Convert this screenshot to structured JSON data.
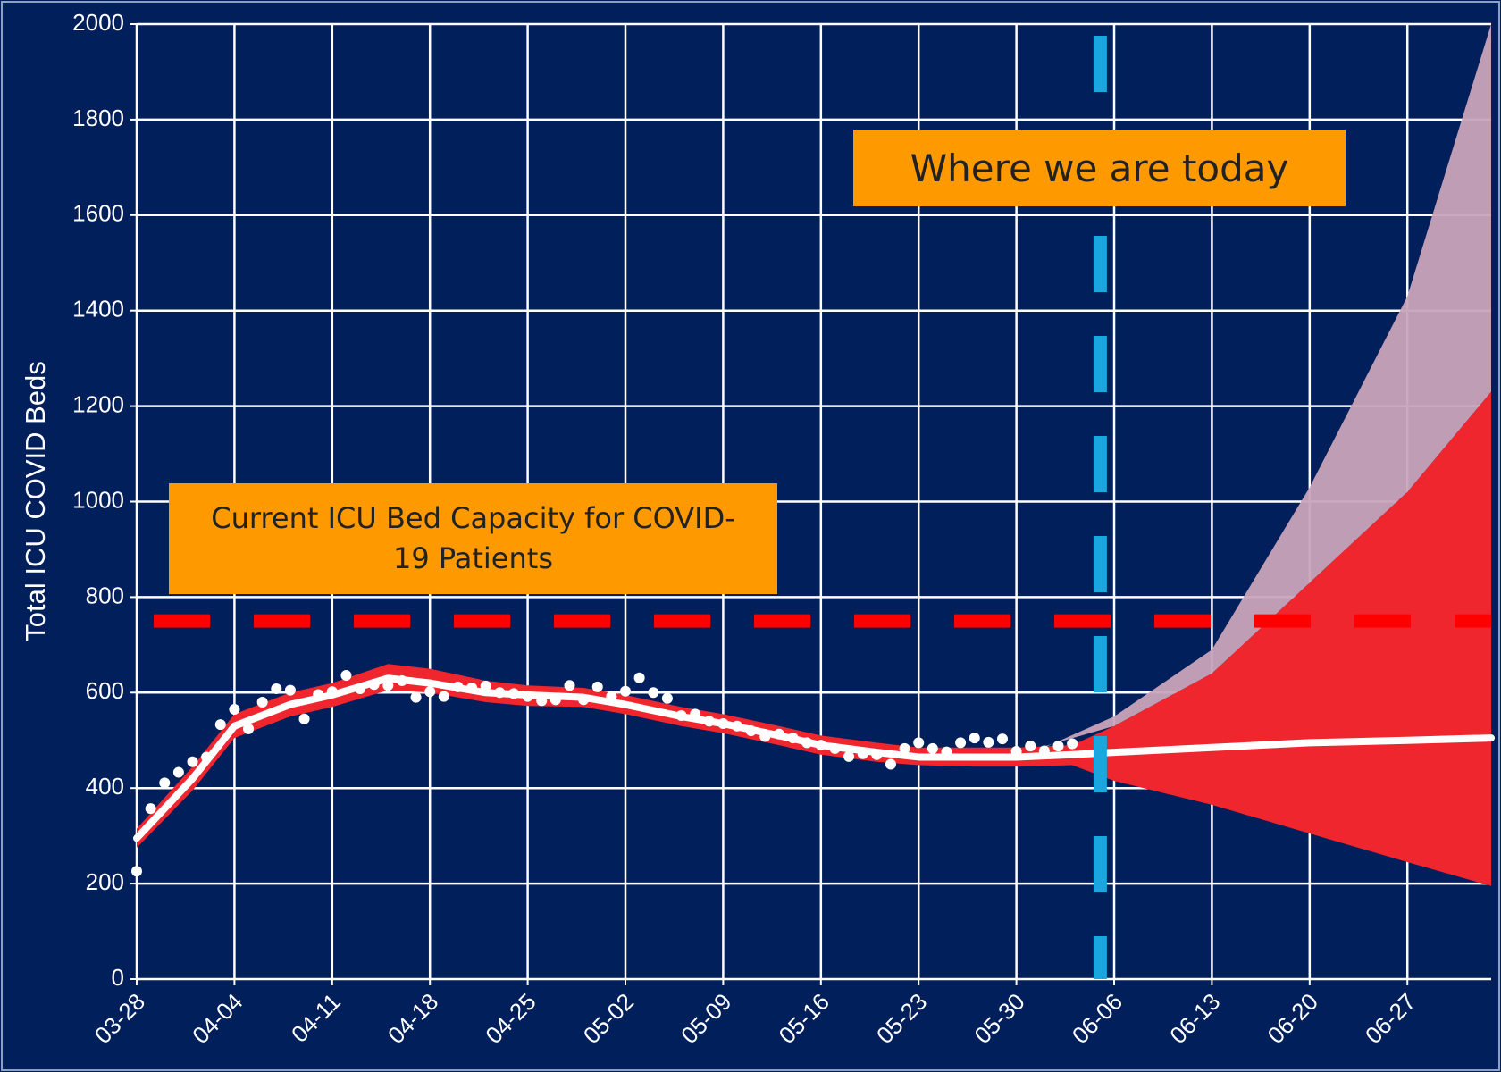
{
  "chart_data": {
    "type": "scatter",
    "ylabel": "Total ICU COVID Beds",
    "ylim": [
      0,
      2000
    ],
    "yticks": [
      0,
      200,
      400,
      600,
      800,
      1000,
      1200,
      1400,
      1600,
      1800,
      2000
    ],
    "xlim": [
      "03-28",
      "07-03"
    ],
    "xticks": [
      "03-28",
      "04-04",
      "04-11",
      "04-18",
      "04-25",
      "05-02",
      "05-09",
      "05-16",
      "05-23",
      "05-30",
      "06-06",
      "06-13",
      "06-20",
      "06-27"
    ],
    "grid": true,
    "x": [
      "03-28",
      "03-29",
      "03-30",
      "03-31",
      "04-01",
      "04-02",
      "04-03",
      "04-04",
      "04-05",
      "04-06",
      "04-07",
      "04-08",
      "04-09",
      "04-10",
      "04-11",
      "04-12",
      "04-13",
      "04-14",
      "04-15",
      "04-16",
      "04-17",
      "04-18",
      "04-19",
      "04-20",
      "04-21",
      "04-22",
      "04-23",
      "04-24",
      "04-25",
      "04-26",
      "04-27",
      "04-28",
      "04-29",
      "04-30",
      "05-01",
      "05-02",
      "05-03",
      "05-04",
      "05-05",
      "05-06",
      "05-07",
      "05-08",
      "05-09",
      "05-10",
      "05-11",
      "05-12",
      "05-13",
      "05-14",
      "05-15",
      "05-16",
      "05-17",
      "05-18",
      "05-19",
      "05-20",
      "05-21",
      "05-22",
      "05-23",
      "05-24",
      "05-25",
      "05-26",
      "05-27",
      "05-28",
      "05-29",
      "05-30",
      "05-31",
      "06-01",
      "06-02",
      "06-03"
    ],
    "values": [
      226,
      357,
      411,
      433,
      455,
      465,
      533,
      565,
      524,
      580,
      608,
      605,
      545,
      596,
      602,
      636,
      608,
      617,
      615,
      625,
      590,
      602,
      592,
      612,
      610,
      614,
      600,
      598,
      592,
      583,
      585,
      615,
      585,
      612,
      592,
      603,
      631,
      600,
      588,
      552,
      555,
      540,
      535,
      530,
      520,
      508,
      513,
      505,
      495,
      490,
      483,
      466,
      472,
      470,
      450,
      483,
      495,
      483,
      476,
      495,
      505,
      496,
      503,
      477,
      488,
      478,
      488,
      493
    ],
    "color": "#ffffff",
    "fit_x": [
      "03-28",
      "04-01",
      "04-04",
      "04-08",
      "04-11",
      "04-15",
      "04-18",
      "04-22",
      "04-25",
      "04-29",
      "05-02",
      "05-06",
      "05-09",
      "05-13",
      "05-16",
      "05-20",
      "05-23",
      "05-27",
      "05-30",
      "06-03",
      "06-06",
      "06-13",
      "06-20",
      "06-27",
      "07-03"
    ],
    "fit": [
      295,
      420,
      530,
      575,
      595,
      630,
      620,
      600,
      595,
      590,
      575,
      550,
      535,
      510,
      490,
      475,
      465,
      465,
      465,
      470,
      475,
      485,
      495,
      500,
      505
    ],
    "fit_color": "#ffffff",
    "band_lower": [
      275,
      395,
      505,
      550,
      570,
      605,
      600,
      580,
      572,
      570,
      555,
      530,
      515,
      490,
      470,
      455,
      448,
      445,
      445,
      448,
      415,
      365,
      305,
      245,
      195
    ],
    "band_upper": [
      315,
      445,
      555,
      600,
      620,
      660,
      650,
      625,
      615,
      610,
      595,
      570,
      555,
      530,
      510,
      495,
      485,
      485,
      485,
      490,
      530,
      640,
      830,
      1020,
      1230
    ],
    "band_color": "#f0262e",
    "projection_x": [
      "06-01",
      "06-06",
      "06-13",
      "06-20",
      "06-27",
      "07-03"
    ],
    "projection_upper": [
      485,
      550,
      690,
      1030,
      1430,
      2000
    ],
    "projection_color": "#c8a4ba",
    "capacity": 750,
    "capacity_color": "#ff0000",
    "today": "06-05",
    "today_color": "#1aa7e0",
    "annotations": [
      "Where we are today",
      "Current ICU Bed Capacity for COVID-19 Patients"
    ]
  }
}
